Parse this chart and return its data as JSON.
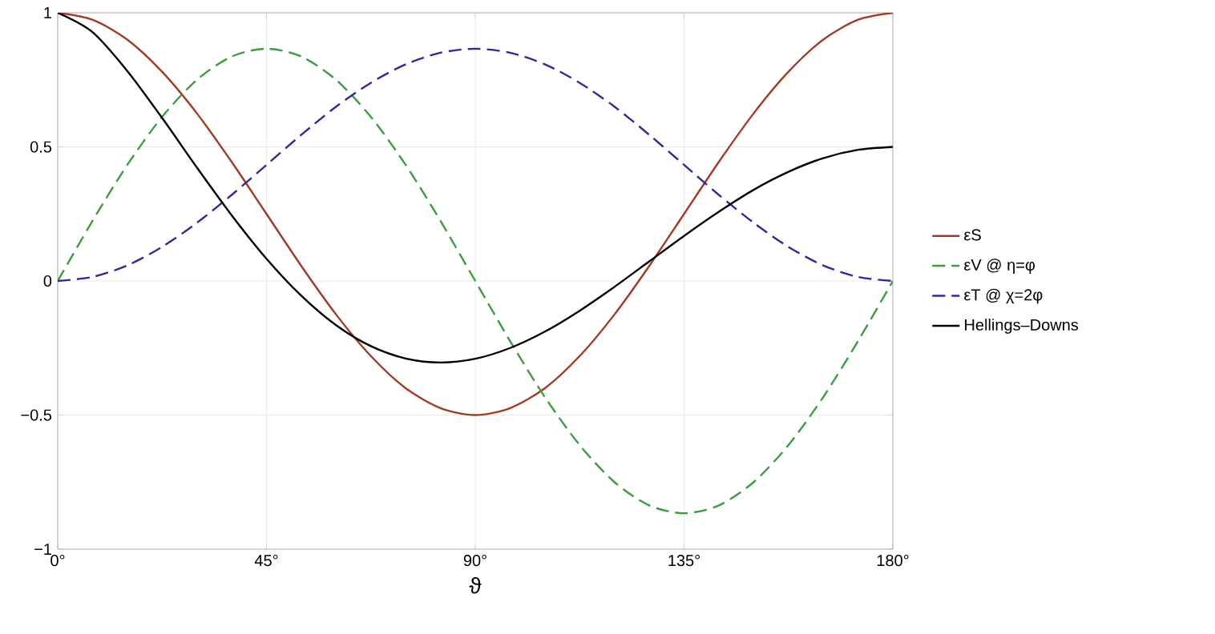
{
  "chart_data": {
    "type": "line",
    "xlabel": "ϑ",
    "x": [
      0,
      7.5,
      15,
      22.5,
      30,
      37.5,
      45,
      52.5,
      60,
      67.5,
      75,
      82.5,
      90,
      97.5,
      105,
      112.5,
      120,
      127.5,
      135,
      142.5,
      150,
      157.5,
      165,
      172.5,
      180
    ],
    "series": [
      {
        "name": "εS",
        "color": "#a33a24",
        "line_style": "solid",
        "values": [
          1,
          0.974,
          0.9,
          0.78,
          0.625,
          0.444,
          0.25,
          0.056,
          -0.125,
          -0.28,
          -0.4,
          -0.474,
          -0.5,
          -0.474,
          -0.4,
          -0.28,
          -0.125,
          0.056,
          0.25,
          0.444,
          0.625,
          0.78,
          0.9,
          0.974,
          1
        ]
      },
      {
        "name": "εV @ η=φ",
        "color": "#3a9e3e",
        "line_style": "dashed",
        "values": [
          0,
          0.224,
          0.433,
          0.612,
          0.75,
          0.837,
          0.866,
          0.837,
          0.75,
          0.612,
          0.433,
          0.224,
          0,
          -0.224,
          -0.433,
          -0.612,
          -0.75,
          -0.837,
          -0.866,
          -0.837,
          -0.75,
          -0.612,
          -0.433,
          -0.224,
          0
        ]
      },
      {
        "name": "εT @ χ=2φ",
        "color": "#2e2a9e",
        "line_style": "dashed",
        "values": [
          0,
          0.015,
          0.058,
          0.127,
          0.217,
          0.321,
          0.433,
          0.545,
          0.65,
          0.739,
          0.808,
          0.851,
          0.866,
          0.851,
          0.808,
          0.739,
          0.65,
          0.545,
          0.433,
          0.321,
          0.217,
          0.127,
          0.058,
          0.015,
          0
        ]
      },
      {
        "name": "Hellings–Downs",
        "color": "#000000",
        "line_style": "solid",
        "values": [
          1,
          0.928,
          0.783,
          0.608,
          0.423,
          0.245,
          0.083,
          -0.055,
          -0.165,
          -0.243,
          -0.289,
          -0.304,
          -0.29,
          -0.25,
          -0.189,
          -0.111,
          -0.022,
          0.073,
          0.168,
          0.258,
          0.34,
          0.407,
          0.458,
          0.489,
          0.5
        ]
      }
    ],
    "xlim": [
      0,
      180
    ],
    "ylim": [
      -1,
      1
    ],
    "xticks": [
      {
        "value": 0,
        "label": "0°"
      },
      {
        "value": 45,
        "label": "45°"
      },
      {
        "value": 90,
        "label": "90°"
      },
      {
        "value": 135,
        "label": "135°"
      },
      {
        "value": 180,
        "label": "180°"
      }
    ],
    "yticks": [
      {
        "value": -1,
        "label": "−1"
      },
      {
        "value": -0.5,
        "label": "−0.5"
      },
      0,
      0.5,
      1
    ],
    "grid": true,
    "legend": "right",
    "marker": "none"
  }
}
